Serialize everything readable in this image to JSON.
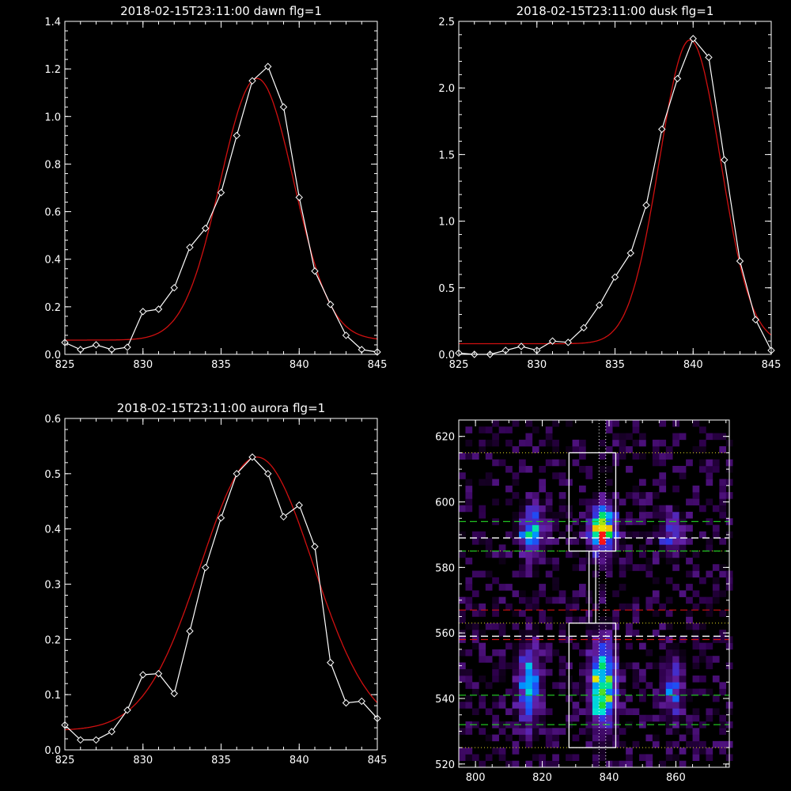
{
  "colors": {
    "background": "#000000",
    "axes": "#ffffff",
    "observed": "#ffffff",
    "fit": "#d01010",
    "green_line": "#21c021",
    "red_line": "#d01010",
    "yellow_line": "#e8e020"
  },
  "chart_data": [
    {
      "id": "dawn",
      "type": "line",
      "title": "2018-02-15T23:11:00 dawn flg=1",
      "xlim": [
        825,
        845
      ],
      "ylim": [
        0,
        1.4
      ],
      "xticks": [
        "825",
        "830",
        "835",
        "840",
        "845"
      ],
      "xtick_values": [
        825,
        830,
        835,
        840,
        845
      ],
      "yticks": [
        "0.0",
        "0.2",
        "0.4",
        "0.6",
        "0.8",
        "1.0",
        "1.2",
        "1.4"
      ],
      "ytick_values": [
        0,
        0.2,
        0.4,
        0.6,
        0.8,
        1.0,
        1.2,
        1.4
      ],
      "series": [
        {
          "kind": "observed",
          "marker": "diamond",
          "x": [
            825,
            826,
            827,
            828,
            829,
            830,
            831,
            832,
            833,
            834,
            835,
            836,
            837,
            838,
            839,
            840,
            841,
            842,
            843,
            844,
            845
          ],
          "y": [
            0.05,
            0.02,
            0.04,
            0.02,
            0.03,
            0.18,
            0.19,
            0.28,
            0.45,
            0.53,
            0.68,
            0.92,
            1.15,
            1.21,
            1.04,
            0.66,
            0.35,
            0.21,
            0.08,
            0.02,
            0.01
          ]
        },
        {
          "kind": "fit",
          "gauss": {
            "amp": 1.1,
            "center": 837.3,
            "sigma": 2.35,
            "offset": 0.06
          }
        }
      ]
    },
    {
      "id": "dusk",
      "type": "line",
      "title": "2018-02-15T23:11:00 dusk flg=1",
      "xlim": [
        825,
        845
      ],
      "ylim": [
        0,
        2.5
      ],
      "xticks": [
        "825",
        "830",
        "835",
        "840",
        "845"
      ],
      "xtick_values": [
        825,
        830,
        835,
        840,
        845
      ],
      "yticks": [
        "0.0",
        "0.5",
        "1.0",
        "1.5",
        "2.0",
        "2.5"
      ],
      "ytick_values": [
        0,
        0.5,
        1.0,
        1.5,
        2.0,
        2.5
      ],
      "series": [
        {
          "kind": "observed",
          "marker": "diamond",
          "x": [
            825,
            826,
            827,
            828,
            829,
            830,
            831,
            832,
            833,
            834,
            835,
            836,
            837,
            838,
            839,
            840,
            841,
            842,
            843,
            844,
            845
          ],
          "y": [
            0.01,
            0.0,
            0.0,
            0.03,
            0.06,
            0.03,
            0.1,
            0.09,
            0.2,
            0.37,
            0.58,
            0.76,
            1.12,
            1.69,
            2.07,
            2.37,
            2.23,
            1.46,
            0.7,
            0.26,
            0.03
          ]
        },
        {
          "kind": "fit",
          "gauss": {
            "amp": 2.28,
            "center": 839.8,
            "sigma": 1.95,
            "offset": 0.08
          }
        }
      ]
    },
    {
      "id": "aurora",
      "type": "line",
      "title": "2018-02-15T23:11:00 aurora flg=1",
      "xlim": [
        825,
        845
      ],
      "ylim": [
        0,
        0.6
      ],
      "xticks": [
        "825",
        "830",
        "835",
        "840",
        "845"
      ],
      "xtick_values": [
        825,
        830,
        835,
        840,
        845
      ],
      "yticks": [
        "0.0",
        "0.1",
        "0.2",
        "0.3",
        "0.4",
        "0.5",
        "0.6"
      ],
      "ytick_values": [
        0,
        0.1,
        0.2,
        0.3,
        0.4,
        0.5,
        0.6
      ],
      "series": [
        {
          "kind": "observed",
          "marker": "diamond",
          "x": [
            825,
            826,
            827,
            828,
            829,
            830,
            831,
            832,
            833,
            834,
            835,
            836,
            837,
            838,
            839,
            840,
            841,
            842,
            843,
            844,
            845
          ],
          "y": [
            0.045,
            0.018,
            0.018,
            0.033,
            0.072,
            0.136,
            0.138,
            0.102,
            0.215,
            0.33,
            0.42,
            0.5,
            0.53,
            0.5,
            0.422,
            0.443,
            0.368,
            0.158,
            0.085,
            0.088,
            0.057
          ]
        },
        {
          "kind": "fit",
          "gauss": {
            "amp": 0.495,
            "center": 837.3,
            "sigma": 3.6,
            "offset": 0.035
          }
        }
      ]
    },
    {
      "id": "image",
      "type": "heatmap",
      "xlim": [
        795,
        876
      ],
      "ylim": [
        519,
        625
      ],
      "xticks": [
        "800",
        "820",
        "840",
        "860"
      ],
      "xtick_values": [
        800,
        820,
        840,
        860
      ],
      "yticks": [
        "520",
        "540",
        "560",
        "580",
        "600",
        "620"
      ],
      "ytick_values": [
        520,
        540,
        560,
        580,
        600,
        620
      ],
      "blobs": [
        {
          "x": 817,
          "y": 591,
          "sx": 2.3,
          "sy": 4.5,
          "amp": 0.6
        },
        {
          "x": 838,
          "y": 592,
          "sx": 2.4,
          "sy": 4.5,
          "amp": 1.0
        },
        {
          "x": 859,
          "y": 590,
          "sx": 2.3,
          "sy": 4.0,
          "amp": 0.35
        },
        {
          "x": 816,
          "y": 544,
          "sx": 2.3,
          "sy": 8.0,
          "amp": 0.5
        },
        {
          "x": 838,
          "y": 544,
          "sx": 2.5,
          "sy": 8.5,
          "amp": 0.82
        },
        {
          "x": 859,
          "y": 543,
          "sx": 2.3,
          "sy": 6.5,
          "amp": 0.3
        }
      ],
      "boxes": [
        {
          "x0": 828,
          "x1": 842,
          "y0": 585,
          "y1": 615
        },
        {
          "x0": 828,
          "x1": 842,
          "y0": 525,
          "y1": 563
        }
      ],
      "connector": {
        "x0": 834,
        "x1": 836,
        "y0": 563,
        "y1": 585
      },
      "vertical_dotted": [
        837,
        839
      ],
      "dotted_h": [
        615,
        585,
        563,
        525
      ],
      "green_dashed": [
        594,
        585,
        541,
        532
      ],
      "white_dashed": [
        589,
        559
      ],
      "red_dashed": [
        567,
        558
      ]
    }
  ]
}
